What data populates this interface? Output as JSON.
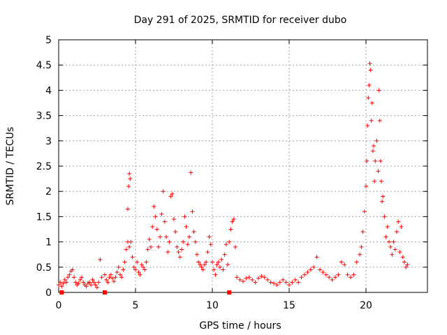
{
  "chart_data": {
    "type": "scatter",
    "title": "Day 291 of 2025, SRMTID for receiver dubo",
    "xlabel": "GPS time / hours",
    "ylabel": "SRMTID / TECUs",
    "xlim": [
      0,
      24
    ],
    "ylim": [
      0,
      5
    ],
    "x_ticks": [
      0,
      5,
      10,
      15,
      20
    ],
    "x_tick_labels": [
      "0",
      "5",
      "10",
      "15",
      "20"
    ],
    "y_ticks": [
      0,
      0.5,
      1,
      1.5,
      2,
      2.5,
      3,
      3.5,
      4,
      4.5,
      5
    ],
    "y_tick_labels": [
      "0",
      "0.5",
      "1",
      "1.5",
      "2",
      "2.5",
      "3",
      "3.5",
      "4",
      "4.5",
      "5"
    ],
    "grid": true,
    "marker": "+",
    "marker_color": "#ff0000",
    "series": [
      {
        "name": "SRMTID",
        "x": [
          0.0,
          0.1,
          0.2,
          0.3,
          0.4,
          0.5,
          0.6,
          0.7,
          0.8,
          0.9,
          1.0,
          1.1,
          1.2,
          1.3,
          1.4,
          1.5,
          1.6,
          1.7,
          1.8,
          1.9,
          2.0,
          2.1,
          2.2,
          2.3,
          2.4,
          2.5,
          2.6,
          2.7,
          2.8,
          3.0,
          3.1,
          3.2,
          3.3,
          3.4,
          3.5,
          3.6,
          3.7,
          3.8,
          3.9,
          4.0,
          4.1,
          4.2,
          4.3,
          4.4,
          4.5,
          4.5,
          4.55,
          4.6,
          4.6,
          4.65,
          4.7,
          4.8,
          4.9,
          5.0,
          5.1,
          5.2,
          5.3,
          5.4,
          5.5,
          5.6,
          5.7,
          5.8,
          5.9,
          6.0,
          6.1,
          6.2,
          6.3,
          6.4,
          6.5,
          6.6,
          6.7,
          6.8,
          6.9,
          7.0,
          7.1,
          7.2,
          7.3,
          7.4,
          7.5,
          7.6,
          7.7,
          7.8,
          7.9,
          8.0,
          8.1,
          8.2,
          8.3,
          8.4,
          8.5,
          8.6,
          8.7,
          8.8,
          8.9,
          9.0,
          9.1,
          9.2,
          9.3,
          9.4,
          9.5,
          9.6,
          9.7,
          9.8,
          9.9,
          10.0,
          10.1,
          10.2,
          10.3,
          10.4,
          10.5,
          10.6,
          10.7,
          10.8,
          10.9,
          11.0,
          11.1,
          11.2,
          11.3,
          11.4,
          11.5,
          11.6,
          11.8,
          12.0,
          12.2,
          12.4,
          12.6,
          12.8,
          13.0,
          13.2,
          13.4,
          13.6,
          13.8,
          14.0,
          14.2,
          14.4,
          14.6,
          14.8,
          15.0,
          15.2,
          15.4,
          15.6,
          15.8,
          16.0,
          16.2,
          16.4,
          16.6,
          16.8,
          17.0,
          17.2,
          17.4,
          17.6,
          17.8,
          18.0,
          18.2,
          18.4,
          18.6,
          18.8,
          19.0,
          19.2,
          19.4,
          19.6,
          19.7,
          19.8,
          19.9,
          20.0,
          20.05,
          20.1,
          20.15,
          20.2,
          20.25,
          20.3,
          20.35,
          20.4,
          20.45,
          20.5,
          20.55,
          20.6,
          20.7,
          20.8,
          20.85,
          20.9,
          20.95,
          21.0,
          21.05,
          21.1,
          21.2,
          21.3,
          21.4,
          21.5,
          21.6,
          21.7,
          21.8,
          21.9,
          22.0,
          22.1,
          22.2,
          22.3,
          22.4,
          22.5,
          22.6,
          22.7
        ],
        "y": [
          0.15,
          0.2,
          0.12,
          0.18,
          0.25,
          0.2,
          0.3,
          0.35,
          0.42,
          0.45,
          0.3,
          0.2,
          0.15,
          0.18,
          0.25,
          0.3,
          0.2,
          0.15,
          0.12,
          0.18,
          0.2,
          0.15,
          0.25,
          0.2,
          0.15,
          0.1,
          0.2,
          0.65,
          0.3,
          0.35,
          0.25,
          0.2,
          0.3,
          0.35,
          0.28,
          0.22,
          0.3,
          0.4,
          0.5,
          0.35,
          0.3,
          0.45,
          0.6,
          0.85,
          1.0,
          1.65,
          2.1,
          2.35,
          0.9,
          2.25,
          1.0,
          0.7,
          0.5,
          0.45,
          0.6,
          0.4,
          0.35,
          0.55,
          0.5,
          0.45,
          0.6,
          0.85,
          1.05,
          0.9,
          1.3,
          1.7,
          1.5,
          1.25,
          0.9,
          1.1,
          1.55,
          2.0,
          1.4,
          1.1,
          0.8,
          1.0,
          1.9,
          1.95,
          1.45,
          1.2,
          0.9,
          0.8,
          0.7,
          0.85,
          1.0,
          1.5,
          1.3,
          0.95,
          1.1,
          2.37,
          1.6,
          1.2,
          1.0,
          0.75,
          0.6,
          0.55,
          0.5,
          0.45,
          0.55,
          0.6,
          0.8,
          1.1,
          0.95,
          0.6,
          0.45,
          0.35,
          0.55,
          0.6,
          0.5,
          0.65,
          0.45,
          0.75,
          0.95,
          0.55,
          1.0,
          1.25,
          1.4,
          1.45,
          0.9,
          0.3,
          0.25,
          0.22,
          0.28,
          0.3,
          0.25,
          0.2,
          0.28,
          0.32,
          0.3,
          0.25,
          0.2,
          0.18,
          0.15,
          0.2,
          0.25,
          0.2,
          0.15,
          0.2,
          0.25,
          0.2,
          0.3,
          0.35,
          0.4,
          0.45,
          0.5,
          0.7,
          0.45,
          0.4,
          0.35,
          0.3,
          0.25,
          0.3,
          0.35,
          0.6,
          0.55,
          0.35,
          0.3,
          0.35,
          0.6,
          0.75,
          0.9,
          1.2,
          1.6,
          2.1,
          2.6,
          3.3,
          3.85,
          4.1,
          4.53,
          4.4,
          3.4,
          3.75,
          2.8,
          2.9,
          2.2,
          2.6,
          3.0,
          2.4,
          4.0,
          3.4,
          2.6,
          2.2,
          1.8,
          1.9,
          1.5,
          1.1,
          1.3,
          1.0,
          0.9,
          0.75,
          1.0,
          0.85,
          1.2,
          1.4,
          0.8,
          1.3,
          0.7,
          0.6,
          0.5,
          0.55
        ]
      }
    ],
    "axis_markers_x": [
      0.2,
      3.0,
      11.1
    ]
  }
}
